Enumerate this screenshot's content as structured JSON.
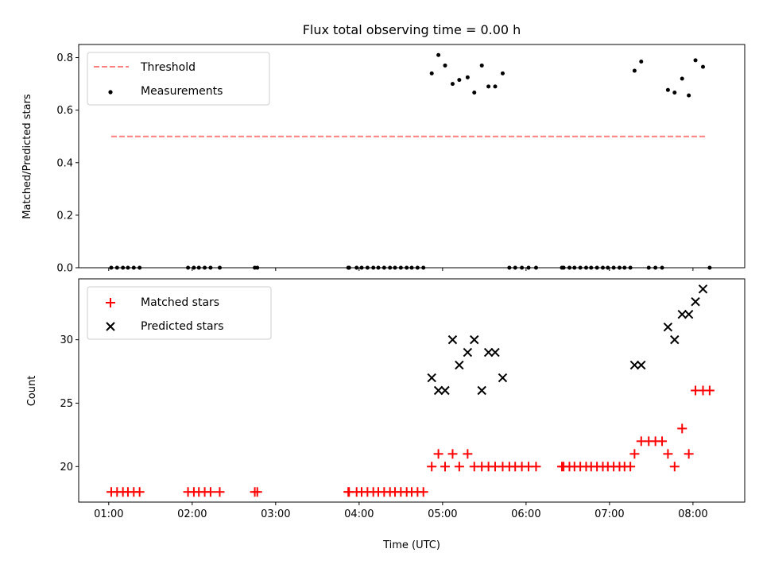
{
  "chart_data": [
    {
      "type": "scatter",
      "title": "Flux total observing time = 0.00 h",
      "xlabel": "",
      "ylabel": "Matched/Predicted stars",
      "ylim": [
        0,
        0.85
      ],
      "yticks": [
        "0.0",
        "0.2",
        "0.4",
        "0.6",
        "0.8"
      ],
      "ytick_values": [
        0,
        0.2,
        0.4,
        0.6,
        0.8
      ],
      "xlim_hours": [
        0.64,
        8.62
      ],
      "xtick_values_hours": [
        1,
        2,
        3,
        4,
        5,
        6,
        7,
        8
      ],
      "xtick_labels": [],
      "grid": false,
      "legend_position": "top-left",
      "threshold": {
        "name": "Threshold",
        "value": 0.5,
        "x_start_hours": 1.03,
        "x_end_hours": 8.17,
        "color": "#ff7f7f",
        "style": "dashed"
      },
      "series": [
        {
          "name": "Measurements",
          "marker": "dot",
          "color": "#000000",
          "x_hours": [
            1.03,
            1.1,
            1.17,
            1.23,
            1.3,
            1.37,
            1.95,
            2.02,
            2.08,
            2.15,
            2.22,
            2.33,
            2.75,
            2.78,
            3.87,
            3.88,
            3.97,
            4.03,
            4.1,
            4.17,
            4.23,
            4.3,
            4.37,
            4.43,
            4.5,
            4.57,
            4.63,
            4.7,
            4.77,
            4.87,
            4.95,
            5.03,
            5.12,
            5.2,
            5.3,
            5.38,
            5.47,
            5.55,
            5.63,
            5.72,
            5.8,
            5.87,
            5.95,
            6.03,
            6.12,
            6.43,
            6.45,
            6.52,
            6.58,
            6.65,
            6.72,
            6.78,
            6.85,
            6.92,
            6.98,
            7.05,
            7.12,
            7.18,
            7.25,
            7.3,
            7.38,
            7.47,
            7.55,
            7.63,
            7.7,
            7.78,
            7.87,
            7.95,
            8.03,
            8.12,
            8.2
          ],
          "y": [
            0,
            0,
            0,
            0,
            0,
            0,
            0,
            0,
            0,
            0,
            0,
            0,
            0,
            0,
            0,
            0,
            0,
            0,
            0,
            0,
            0,
            0,
            0,
            0,
            0,
            0,
            0,
            0,
            0,
            0.74,
            0.81,
            0.77,
            0.7,
            0.715,
            0.725,
            0.667,
            0.77,
            0.69,
            0.69,
            0.74,
            0,
            0,
            0,
            0,
            0,
            0,
            0,
            0,
            0,
            0,
            0,
            0,
            0,
            0,
            0,
            0,
            0,
            0,
            0,
            0.75,
            0.785,
            0,
            0,
            0,
            0.677,
            0.667,
            0.72,
            0.656,
            0.79,
            0.765,
            0
          ]
        }
      ]
    },
    {
      "type": "scatter",
      "title": "",
      "xlabel": "Time (UTC)",
      "ylabel": "Count",
      "ylim": [
        17.2,
        34.8
      ],
      "yticks": [
        "20",
        "25",
        "30"
      ],
      "ytick_values": [
        20,
        25,
        30
      ],
      "xlim_hours": [
        0.64,
        8.62
      ],
      "xtick_values_hours": [
        1,
        2,
        3,
        4,
        5,
        6,
        7,
        8
      ],
      "xtick_labels": [
        "01:00",
        "02:00",
        "03:00",
        "04:00",
        "05:00",
        "06:00",
        "07:00",
        "08:00"
      ],
      "grid": false,
      "legend_position": "top-left",
      "series": [
        {
          "name": "Matched stars",
          "marker": "plus",
          "color": "#ff0000",
          "x_hours": [
            1.03,
            1.1,
            1.17,
            1.23,
            1.3,
            1.37,
            1.95,
            2.02,
            2.08,
            2.15,
            2.22,
            2.33,
            2.75,
            2.78,
            3.87,
            3.88,
            3.97,
            4.03,
            4.1,
            4.17,
            4.23,
            4.3,
            4.37,
            4.43,
            4.5,
            4.57,
            4.63,
            4.7,
            4.77,
            4.87,
            4.95,
            5.03,
            5.12,
            5.2,
            5.3,
            5.38,
            5.47,
            5.55,
            5.63,
            5.72,
            5.8,
            5.87,
            5.95,
            6.03,
            6.12,
            6.43,
            6.45,
            6.52,
            6.58,
            6.65,
            6.72,
            6.78,
            6.85,
            6.92,
            6.98,
            7.05,
            7.12,
            7.18,
            7.25,
            7.3,
            7.38,
            7.47,
            7.55,
            7.63,
            7.7,
            7.78,
            7.87,
            7.95,
            8.03,
            8.12,
            8.2
          ],
          "y": [
            18,
            18,
            18,
            18,
            18,
            18,
            18,
            18,
            18,
            18,
            18,
            18,
            18,
            18,
            18,
            18,
            18,
            18,
            18,
            18,
            18,
            18,
            18,
            18,
            18,
            18,
            18,
            18,
            18,
            20,
            21,
            20,
            21,
            20,
            21,
            20,
            20,
            20,
            20,
            20,
            20,
            20,
            20,
            20,
            20,
            20,
            20,
            20,
            20,
            20,
            20,
            20,
            20,
            20,
            20,
            20,
            20,
            20,
            20,
            21,
            22,
            22,
            22,
            22,
            21,
            20,
            23,
            21,
            26,
            26,
            26
          ]
        },
        {
          "name": "Predicted stars",
          "marker": "x",
          "color": "#000000",
          "x_hours": [
            4.87,
            4.95,
            5.03,
            5.12,
            5.2,
            5.3,
            5.38,
            5.47,
            5.55,
            5.63,
            5.72,
            7.3,
            7.38,
            7.7,
            7.78,
            7.87,
            7.95,
            8.03,
            8.12
          ],
          "y": [
            27,
            26,
            26,
            30,
            28,
            29,
            30,
            26,
            29,
            29,
            27,
            28,
            28,
            31,
            30,
            32,
            32,
            33,
            34
          ]
        }
      ]
    }
  ]
}
